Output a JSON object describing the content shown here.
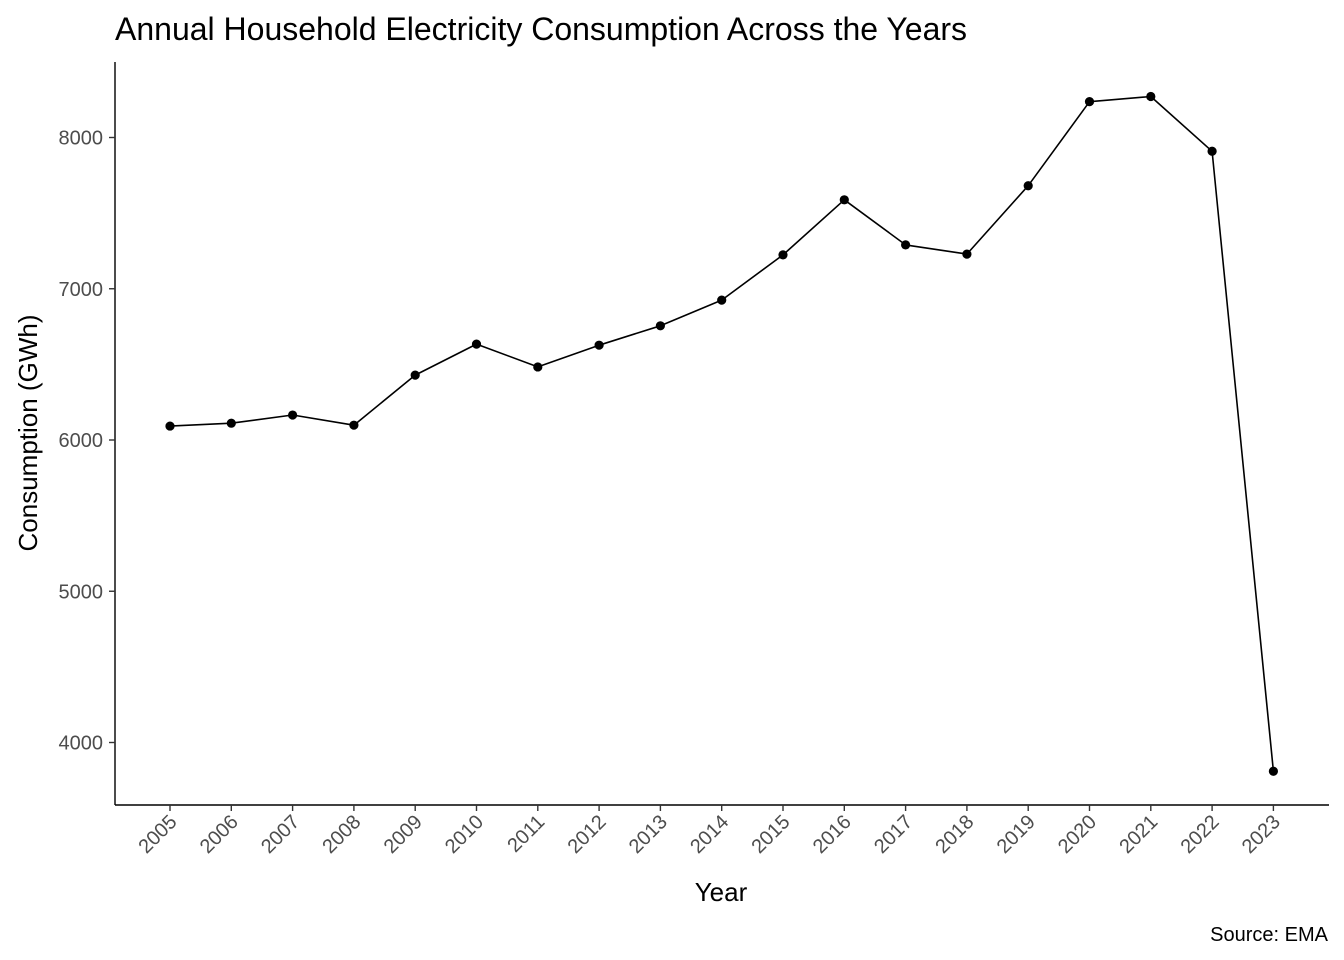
{
  "chart_data": {
    "type": "line",
    "title": "Annual Household Electricity Consumption Across the Years",
    "xlabel": "Year",
    "ylabel": "Consumption (GWh)",
    "caption": "Source: EMA",
    "x": [
      "2005",
      "2006",
      "2007",
      "2008",
      "2009",
      "2010",
      "2011",
      "2012",
      "2013",
      "2014",
      "2015",
      "2016",
      "2017",
      "2018",
      "2019",
      "2020",
      "2021",
      "2022",
      "2023"
    ],
    "series": [
      {
        "values": [
          6092,
          6111,
          6165,
          6098,
          6429,
          6634,
          6483,
          6627,
          6755,
          6925,
          7224,
          7588,
          7290,
          7229,
          7681,
          8237,
          8271,
          7909,
          3810
        ]
      }
    ],
    "yticks": [
      4000,
      5000,
      6000,
      7000,
      8000
    ],
    "ylim": [
      3600,
      8500
    ],
    "grid": false,
    "legend": "none",
    "line_color": "#000000",
    "point_color": "#000000"
  }
}
